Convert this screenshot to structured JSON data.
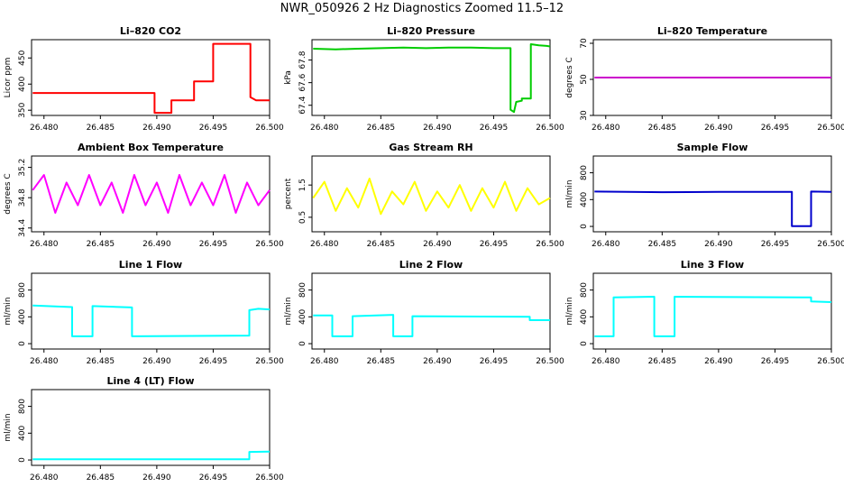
{
  "figure_title": "NWR_050926 2 Hz Diagnostics Zoomed 11.5–12",
  "chart_data": [
    {
      "type": "line",
      "title": "Li–820 CO2",
      "ylabel": "Licor ppm",
      "color": "#ff0000",
      "xlim": [
        26.4789,
        26.5
      ],
      "ylim": [
        340,
        485
      ],
      "xticks": [
        "26.480",
        "26.485",
        "26.490",
        "26.495",
        "26.500"
      ],
      "yticks": [
        "350",
        "400",
        "450"
      ],
      "x": [
        26.479,
        26.4898,
        26.4898,
        26.4913,
        26.4913,
        26.4933,
        26.4933,
        26.495,
        26.495,
        26.4983,
        26.4983,
        26.4988,
        26.5
      ],
      "y": [
        383,
        383,
        345,
        345,
        369,
        369,
        405,
        405,
        477,
        477,
        375,
        369,
        369
      ]
    },
    {
      "type": "line",
      "title": "Li–820 Pressure",
      "ylabel": "kPa",
      "color": "#00cc00",
      "xlim": [
        26.4789,
        26.5
      ],
      "ylim": [
        67.31,
        67.98
      ],
      "xticks": [
        "26.480",
        "26.485",
        "26.490",
        "26.495",
        "26.500"
      ],
      "yticks": [
        "67.4",
        "67.6",
        "67.8"
      ],
      "x": [
        26.479,
        26.481,
        26.483,
        26.485,
        26.487,
        26.489,
        26.491,
        26.493,
        26.495,
        26.4965,
        26.4965,
        26.4968,
        26.497,
        26.4975,
        26.4975,
        26.4983,
        26.4983,
        26.499,
        26.4997,
        26.5
      ],
      "y": [
        67.9,
        67.895,
        67.9,
        67.905,
        67.91,
        67.905,
        67.91,
        67.91,
        67.905,
        67.905,
        67.36,
        67.34,
        67.43,
        67.44,
        67.46,
        67.46,
        67.94,
        67.93,
        67.925,
        67.92
      ]
    },
    {
      "type": "line",
      "title": "Li–820 Temperature",
      "ylabel": "degrees C",
      "color": "#cc00cc",
      "xlim": [
        26.4789,
        26.5
      ],
      "ylim": [
        30,
        72
      ],
      "xticks": [
        "26.480",
        "26.485",
        "26.490",
        "26.495",
        "26.500"
      ],
      "yticks": [
        "30",
        "50",
        "70"
      ],
      "x": [
        26.479,
        26.5
      ],
      "y": [
        51,
        51
      ]
    },
    {
      "type": "line",
      "title": "Ambient Box Temperature",
      "ylabel": "degrees C",
      "color": "#ff00ff",
      "xlim": [
        26.4789,
        26.5
      ],
      "ylim": [
        34.35,
        35.35
      ],
      "xticks": [
        "26.480",
        "26.485",
        "26.490",
        "26.495",
        "26.500"
      ],
      "yticks": [
        "34.4",
        "34.8",
        "35.2"
      ],
      "x": [
        26.479,
        26.48,
        26.481,
        26.482,
        26.483,
        26.484,
        26.485,
        26.486,
        26.487,
        26.488,
        26.489,
        26.49,
        26.491,
        26.492,
        26.493,
        26.494,
        26.495,
        26.496,
        26.497,
        26.498,
        26.499,
        26.5
      ],
      "y": [
        34.9,
        35.1,
        34.6,
        35.0,
        34.7,
        35.1,
        34.7,
        35.0,
        34.6,
        35.1,
        34.7,
        35.0,
        34.6,
        35.1,
        34.7,
        35.0,
        34.7,
        35.1,
        34.6,
        35.0,
        34.7,
        34.9
      ]
    },
    {
      "type": "line",
      "title": "Gas Stream RH",
      "ylabel": "percent",
      "color": "#ffff00",
      "xlim": [
        26.4789,
        26.5
      ],
      "ylim": [
        0.05,
        2.4
      ],
      "xticks": [
        "26.480",
        "26.485",
        "26.490",
        "26.495",
        "26.500"
      ],
      "yticks": [
        "0.5",
        "1.5"
      ],
      "x": [
        26.479,
        26.48,
        26.481,
        26.482,
        26.483,
        26.484,
        26.485,
        26.486,
        26.487,
        26.488,
        26.489,
        26.49,
        26.491,
        26.492,
        26.493,
        26.494,
        26.495,
        26.496,
        26.497,
        26.498,
        26.499,
        26.5
      ],
      "y": [
        1.1,
        1.6,
        0.7,
        1.4,
        0.8,
        1.7,
        0.6,
        1.3,
        0.9,
        1.6,
        0.7,
        1.3,
        0.8,
        1.5,
        0.7,
        1.4,
        0.8,
        1.6,
        0.7,
        1.4,
        0.9,
        1.1
      ]
    },
    {
      "type": "line",
      "title": "Sample Flow",
      "ylabel": "ml/min",
      "color": "#0000cc",
      "xlim": [
        26.4789,
        26.5
      ],
      "ylim": [
        -80,
        1050
      ],
      "xticks": [
        "26.480",
        "26.485",
        "26.490",
        "26.495",
        "26.500"
      ],
      "yticks": [
        "0",
        "400",
        "800"
      ],
      "x": [
        26.479,
        26.485,
        26.49,
        26.4965,
        26.4965,
        26.4982,
        26.4982,
        26.5
      ],
      "y": [
        520,
        510,
        515,
        515,
        5,
        5,
        520,
        515
      ]
    },
    {
      "type": "line",
      "title": "Line 1 Flow",
      "ylabel": "ml/min",
      "color": "#00ffff",
      "xlim": [
        26.4789,
        26.5
      ],
      "ylim": [
        -80,
        1050
      ],
      "xticks": [
        "26.480",
        "26.485",
        "26.490",
        "26.495",
        "26.500"
      ],
      "yticks": [
        "0",
        "400",
        "800"
      ],
      "x": [
        26.479,
        26.4825,
        26.4825,
        26.4843,
        26.4843,
        26.4878,
        26.4878,
        26.4982,
        26.4982,
        26.499,
        26.5
      ],
      "y": [
        570,
        545,
        110,
        110,
        560,
        540,
        110,
        120,
        500,
        520,
        510
      ]
    },
    {
      "type": "line",
      "title": "Line 2 Flow",
      "ylabel": "ml/min",
      "color": "#00ffff",
      "xlim": [
        26.4789,
        26.5
      ],
      "ylim": [
        -80,
        1050
      ],
      "xticks": [
        "26.480",
        "26.485",
        "26.490",
        "26.495",
        "26.500"
      ],
      "yticks": [
        "0",
        "400",
        "800"
      ],
      "x": [
        26.479,
        26.4807,
        26.4807,
        26.4825,
        26.4825,
        26.4861,
        26.4861,
        26.4878,
        26.4878,
        26.4982,
        26.4982,
        26.5
      ],
      "y": [
        420,
        420,
        110,
        110,
        410,
        430,
        110,
        110,
        410,
        400,
        350,
        350
      ]
    },
    {
      "type": "line",
      "title": "Line 3 Flow",
      "ylabel": "ml/min",
      "color": "#00ffff",
      "xlim": [
        26.4789,
        26.5
      ],
      "ylim": [
        -80,
        1050
      ],
      "xticks": [
        "26.480",
        "26.485",
        "26.490",
        "26.495",
        "26.500"
      ],
      "yticks": [
        "0",
        "400",
        "800"
      ],
      "x": [
        26.479,
        26.4807,
        26.4807,
        26.4843,
        26.4843,
        26.4861,
        26.4861,
        26.4982,
        26.4982,
        26.5
      ],
      "y": [
        110,
        110,
        690,
        700,
        110,
        110,
        700,
        690,
        630,
        620
      ]
    },
    {
      "type": "line",
      "title": "Line 4 (LT) Flow",
      "ylabel": "ml/min",
      "color": "#00ffff",
      "xlim": [
        26.4789,
        26.5
      ],
      "ylim": [
        -80,
        1050
      ],
      "xticks": [
        "26.480",
        "26.485",
        "26.490",
        "26.495",
        "26.500"
      ],
      "yticks": [
        "0",
        "400",
        "800"
      ],
      "x": [
        26.479,
        26.4982,
        26.4982,
        26.5
      ],
      "y": [
        10,
        10,
        120,
        125
      ]
    }
  ]
}
